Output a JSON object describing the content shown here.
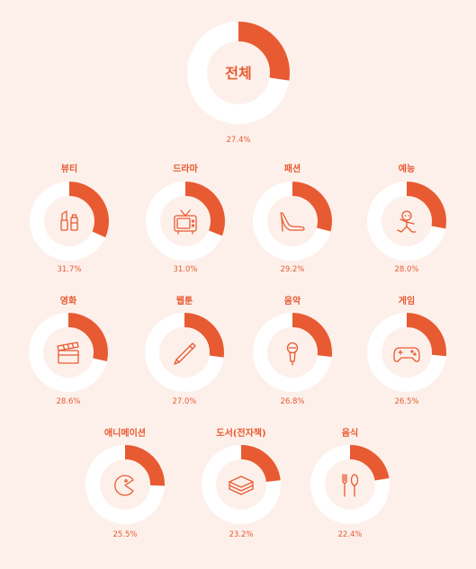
{
  "colors": {
    "background": "#fdf0ea",
    "track": "#ffffff",
    "accent": "#e85a32"
  },
  "chart_data": {
    "type": "pie",
    "series": [
      {
        "label": "전체",
        "value": 27.4,
        "value_label": "27.4%",
        "icon": "none"
      },
      {
        "label": "뷰티",
        "value": 31.7,
        "value_label": "31.7%",
        "icon": "lipstick-icon"
      },
      {
        "label": "드라마",
        "value": 31.0,
        "value_label": "31.0%",
        "icon": "tv-icon"
      },
      {
        "label": "패션",
        "value": 29.2,
        "value_label": "29.2%",
        "icon": "high-heel-icon"
      },
      {
        "label": "예능",
        "value": 28.0,
        "value_label": "28.0%",
        "icon": "dancer-icon"
      },
      {
        "label": "영화",
        "value": 28.6,
        "value_label": "28.6%",
        "icon": "clapperboard-icon"
      },
      {
        "label": "웹툰",
        "value": 27.0,
        "value_label": "27.0%",
        "icon": "pen-icon"
      },
      {
        "label": "음악",
        "value": 26.8,
        "value_label": "26.8%",
        "icon": "microphone-icon"
      },
      {
        "label": "게임",
        "value": 26.5,
        "value_label": "26.5%",
        "icon": "gamepad-icon"
      },
      {
        "label": "애니메이션",
        "value": 25.5,
        "value_label": "25.5%",
        "icon": "pacman-icon"
      },
      {
        "label": "도서(전자책)",
        "value": 23.2,
        "value_label": "23.2%",
        "icon": "book-stack-icon"
      },
      {
        "label": "음식",
        "value": 22.4,
        "value_label": "22.4%",
        "icon": "fork-spoon-icon"
      }
    ]
  }
}
